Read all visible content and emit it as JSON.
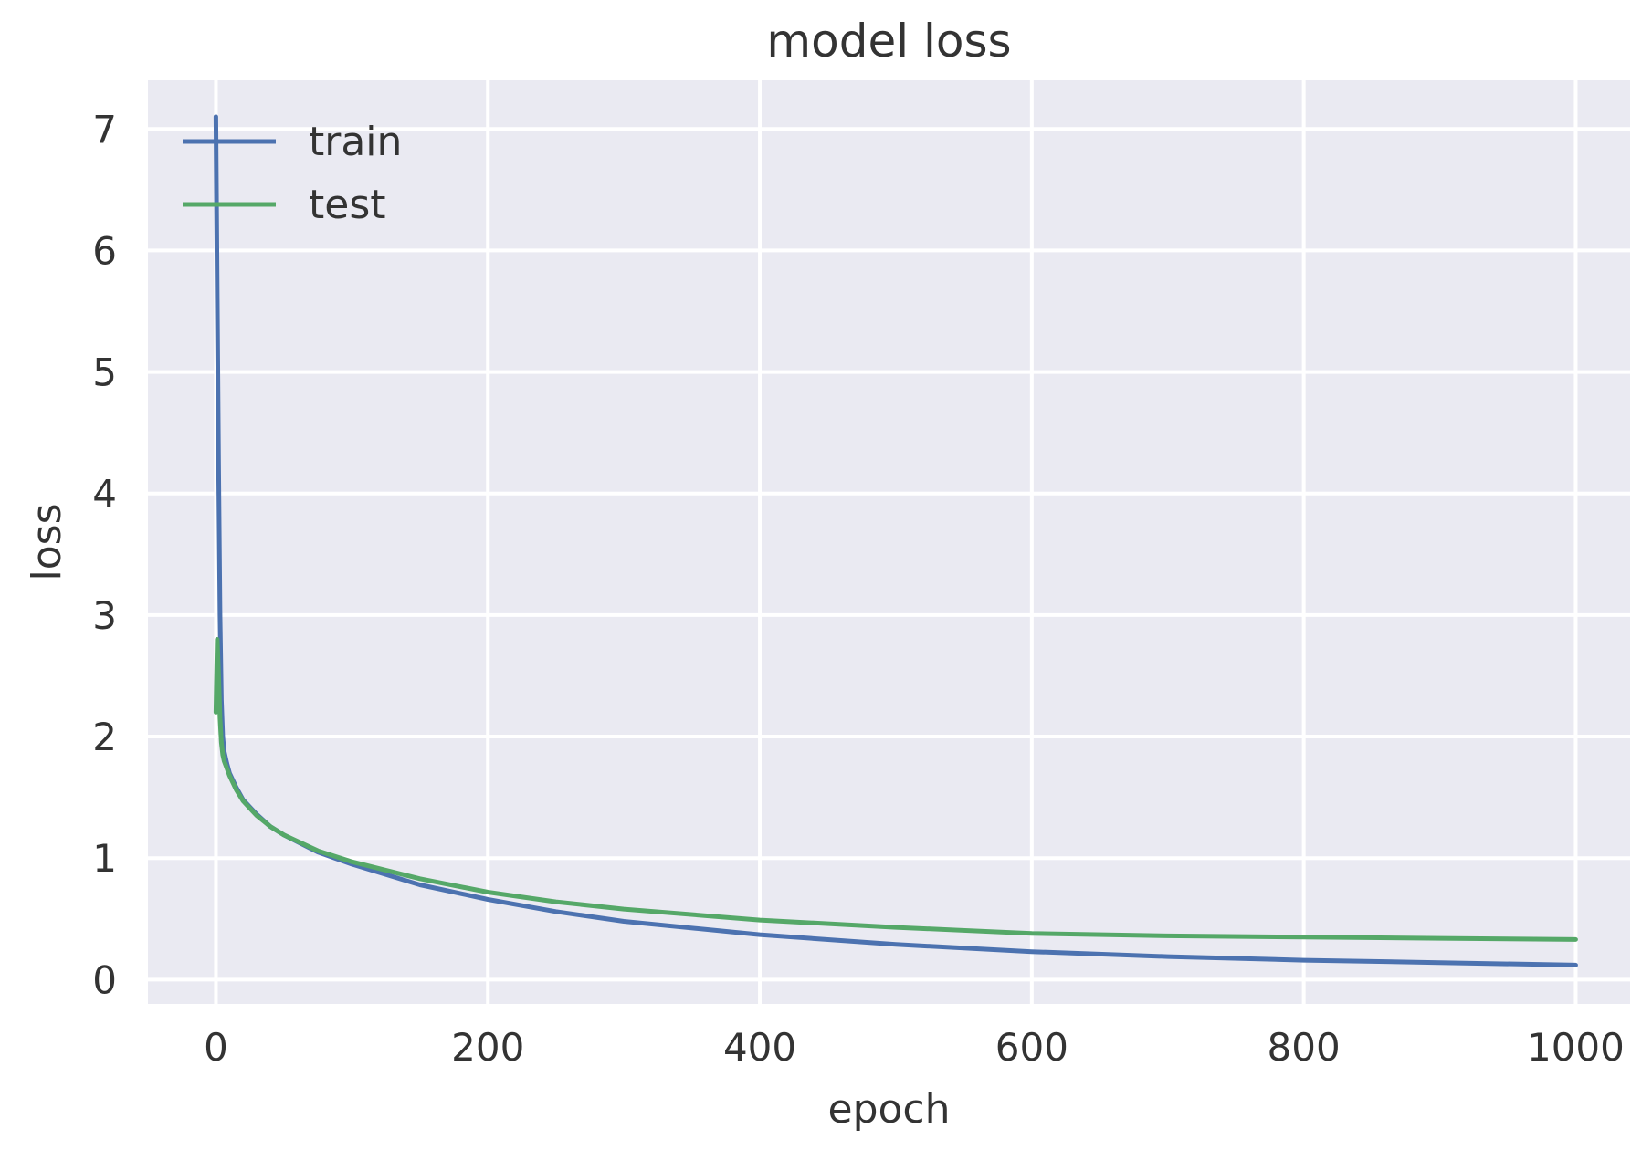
{
  "chart_data": {
    "type": "line",
    "title": "model loss",
    "xlabel": "epoch",
    "ylabel": "loss",
    "xlim": [
      -50,
      1040
    ],
    "ylim": [
      -0.2,
      7.4
    ],
    "xticks": [
      0,
      200,
      400,
      600,
      800,
      1000
    ],
    "yticks": [
      0,
      1,
      2,
      3,
      4,
      5,
      6,
      7
    ],
    "grid": true,
    "legend": {
      "placement": "top-left",
      "entries": [
        "train",
        "test"
      ]
    },
    "series": [
      {
        "name": "train",
        "color": "#4c72b0",
        "x": [
          0,
          1,
          2,
          3,
          4,
          5,
          6,
          8,
          10,
          15,
          20,
          30,
          40,
          50,
          75,
          100,
          150,
          200,
          250,
          300,
          400,
          500,
          600,
          700,
          800,
          900,
          1000
        ],
        "y": [
          7.1,
          5.6,
          4.2,
          3.0,
          2.3,
          2.0,
          1.88,
          1.78,
          1.7,
          1.58,
          1.48,
          1.36,
          1.26,
          1.19,
          1.05,
          0.95,
          0.78,
          0.66,
          0.56,
          0.48,
          0.37,
          0.29,
          0.23,
          0.19,
          0.16,
          0.14,
          0.12
        ]
      },
      {
        "name": "test",
        "color": "#55a868",
        "x": [
          0,
          1,
          2,
          3,
          4,
          5,
          6,
          8,
          10,
          15,
          20,
          30,
          40,
          50,
          75,
          100,
          150,
          200,
          250,
          300,
          400,
          500,
          600,
          700,
          800,
          900,
          1000
        ],
        "y": [
          2.2,
          2.8,
          2.5,
          2.15,
          1.95,
          1.85,
          1.8,
          1.74,
          1.68,
          1.56,
          1.47,
          1.35,
          1.26,
          1.19,
          1.06,
          0.97,
          0.83,
          0.72,
          0.64,
          0.58,
          0.49,
          0.43,
          0.38,
          0.36,
          0.35,
          0.34,
          0.33
        ]
      }
    ]
  }
}
